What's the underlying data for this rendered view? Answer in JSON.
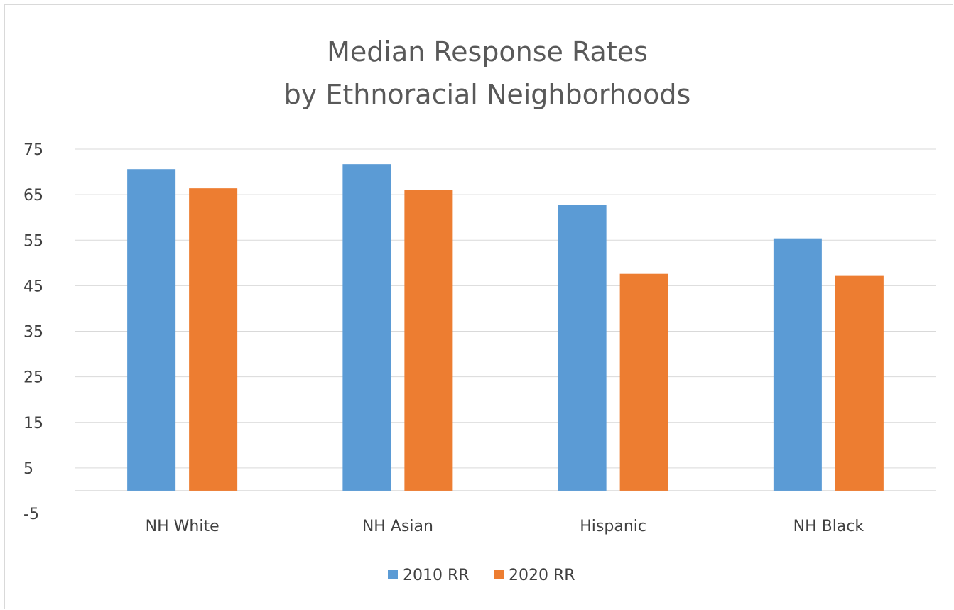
{
  "chart_data": {
    "type": "bar",
    "title": [
      "Median Response Rates",
      "by Ethnoracial Neighborhoods"
    ],
    "xlabel": "",
    "ylabel": "",
    "categories": [
      "NH White",
      "NH Asian",
      "Hispanic",
      "NH Black"
    ],
    "series": [
      {
        "name": "2010 RR",
        "values": [
          70.6,
          71.7,
          62.7,
          55.4
        ],
        "color": "#5b9bd5"
      },
      {
        "name": "2020 RR",
        "values": [
          66.4,
          66.1,
          47.6,
          47.3
        ],
        "color": "#ed7d31"
      }
    ],
    "ylim": [
      -5,
      75
    ],
    "yticks": [
      -5,
      5,
      15,
      25,
      35,
      45,
      55,
      65,
      75
    ],
    "grid": true,
    "legend_position": "bottom"
  }
}
